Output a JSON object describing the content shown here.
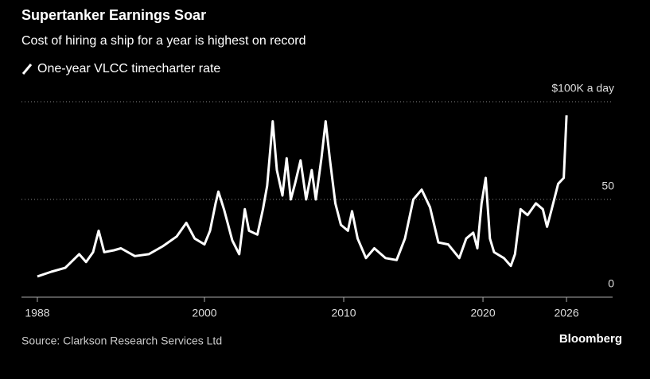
{
  "chart_data": {
    "type": "line",
    "title": "Supertanker Earnings Soar",
    "subtitle": "Cost of hiring a ship for a year is highest on record",
    "source": "Source: Clarkson Research Services Ltd",
    "brand": "Bloomberg",
    "x": [
      1988.0,
      1989,
      1990,
      1991,
      1991.5,
      1992,
      1992.4,
      1992.8,
      1993.5,
      1994,
      1995,
      1996,
      1997,
      1998,
      1998.7,
      1999.3,
      2000,
      2000.4,
      2000.8,
      2001,
      2001.4,
      2002,
      2002.5,
      2002.9,
      2003.2,
      2003.8,
      2004.2,
      2004.5,
      2004.9,
      2005.2,
      2005.6,
      2005.9,
      2006.2,
      2006.5,
      2006.9,
      2007.3,
      2007.7,
      2008.0,
      2008.4,
      2008.7,
      2009.0,
      2009.4,
      2009.8,
      2010.3,
      2010.6,
      2011,
      2011.6,
      2012.2,
      2013,
      2013.8,
      2014.4,
      2015,
      2015.6,
      2016.2,
      2016.8,
      2017.5,
      2018.3,
      2018.8,
      2019.3,
      2019.6,
      2019.9,
      2020.2,
      2020.5,
      2020.8,
      2021.5,
      2022.0,
      2022.3,
      2022.7,
      2023.2,
      2023.8,
      2024.3,
      2024.6,
      2024.9,
      2025.4,
      2025.8,
      2026.0
    ],
    "series": [
      {
        "name": "One-year VLCC timecharter rate",
        "color": "#ffffff",
        "values": [
          10.6,
          13,
          15,
          22,
          18,
          23,
          34,
          23,
          24,
          25,
          21,
          22,
          26,
          31,
          38,
          30,
          27,
          34,
          48,
          54,
          45,
          29,
          22,
          45,
          34,
          32,
          45,
          57,
          90,
          65,
          52,
          71,
          50,
          58,
          70,
          50,
          65,
          50,
          71,
          90,
          71,
          48,
          37,
          34,
          44,
          30,
          20,
          25,
          20,
          19,
          30,
          50,
          55,
          46,
          28,
          27,
          20,
          30,
          33,
          25,
          48,
          61,
          30,
          23,
          20,
          16,
          22,
          45,
          42,
          48,
          45,
          36,
          44,
          58,
          61,
          93
        ]
      }
    ],
    "xlim": [
      1986.86,
      2029.31
    ],
    "xticks": [
      1988,
      2000,
      2010,
      2020,
      2026
    ],
    "ylim": [
      0,
      100
    ],
    "yticks": [
      0,
      50,
      {
        "value": 100,
        "label": "$100K a day"
      }
    ],
    "grid": true
  }
}
